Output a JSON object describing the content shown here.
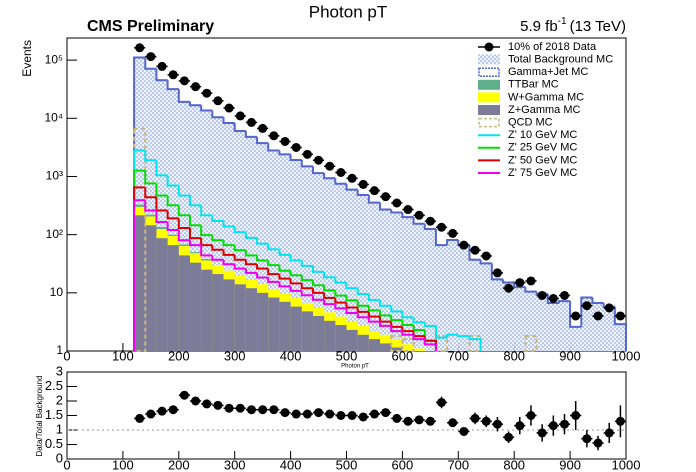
{
  "chart_data": [
    {
      "type": "histogram",
      "title": "Photon pT",
      "experiment": "CMS Preliminary",
      "lumi": "5.9 fb",
      "lumi_exp": "-1",
      "lumi_energy": "(13 TeV)",
      "x_label": "Photon pT",
      "y_label": "Events",
      "log_y": true,
      "legend_position": "top-right",
      "xlim": [
        0,
        1000
      ],
      "xticks": [
        0,
        100,
        200,
        300,
        400,
        500,
        600,
        700,
        800,
        900,
        1000
      ],
      "ylim": [
        1,
        240000
      ],
      "yticks": [
        1,
        10,
        {
          "value": 100,
          "label": "10²"
        },
        {
          "value": 1000,
          "label": "10³"
        },
        {
          "value": 10000,
          "label": "10⁴"
        },
        {
          "value": 100000,
          "label": "10⁵"
        }
      ],
      "bins": [
        120,
        140,
        160,
        180,
        200,
        220,
        240,
        260,
        280,
        300,
        320,
        340,
        360,
        380,
        400,
        420,
        440,
        460,
        480,
        500,
        520,
        540,
        560,
        580,
        600,
        620,
        640,
        660,
        680,
        700,
        720,
        740,
        760,
        780,
        800,
        820,
        840,
        860,
        880,
        900,
        920,
        940,
        960,
        980,
        1000
      ],
      "series": [
        {
          "name": "10% of 2018 Data",
          "color": "#000000",
          "style": "points",
          "values": [
            163000,
            115000,
            78000,
            56000,
            44000,
            35000,
            27000,
            20000,
            15000,
            11000,
            8500,
            6700,
            5000,
            4000,
            3150,
            2400,
            1900,
            1500,
            1170,
            930,
            730,
            570,
            450,
            350,
            270,
            215,
            170,
            134,
            105,
            66,
            54,
            43,
            22,
            12,
            15,
            16,
            9,
            8,
            9,
            4,
            6,
            4,
            5.5,
            4
          ]
        },
        {
          "name": "Total Background MC",
          "color": "#8fa8dc",
          "style": "hatch",
          "values": [
            116000,
            74000,
            47000,
            33000,
            20000,
            17500,
            14200,
            10800,
            8600,
            6300,
            5000,
            3900,
            2900,
            2500,
            2000,
            1550,
            1190,
            970,
            780,
            620,
            500,
            370,
            280,
            250,
            210,
            160,
            130,
            69,
            84,
            69,
            39,
            33,
            18,
            16,
            13,
            11,
            10,
            7,
            7.5,
            2.7,
            8.6,
            7,
            6,
            3
          ]
        },
        {
          "name": "Gamma+Jet MC",
          "color": "#5566cc",
          "style": "line",
          "values": [
            111000,
            71000,
            45000,
            31700,
            19200,
            16800,
            13600,
            10400,
            8300,
            6050,
            4800,
            3750,
            2800,
            2400,
            1920,
            1490,
            1140,
            930,
            750,
            595,
            480,
            355,
            270,
            240,
            200,
            154,
            125,
            66,
            81,
            66,
            37,
            32,
            17,
            15,
            12.5,
            10.5,
            9.6,
            6.7,
            7.2,
            2.6,
            8.3,
            6.7,
            5.8,
            2.9
          ]
        },
        {
          "name": "TTBar MC",
          "color": "#5fae8c",
          "style": "fill",
          "values": [
            330,
            220,
            135,
            100,
            68,
            50,
            38,
            null,
            null,
            null,
            null,
            null,
            null,
            null,
            null,
            null,
            null,
            null,
            null,
            null,
            null,
            null,
            null,
            null,
            null,
            null,
            null,
            null,
            null,
            null,
            null,
            null,
            null,
            null,
            null,
            null,
            null,
            null,
            null,
            null,
            null,
            null,
            null,
            null
          ]
        },
        {
          "name": "W+Gamma MC",
          "color": "#ffff00",
          "style": "fill",
          "values": [
            300,
            205,
            125,
            95,
            64,
            48,
            36,
            30,
            24,
            20,
            17,
            14,
            11.6,
            9.8,
            8.1,
            6.7,
            5.6,
            4.6,
            3.9,
            3.2,
            2.7,
            2.2,
            1.9,
            1.6,
            1.3,
            1.1,
            null,
            null,
            null,
            null,
            null,
            null,
            null,
            null,
            null,
            null,
            null,
            null,
            null,
            null,
            null,
            null,
            null,
            null
          ]
        },
        {
          "name": "Z+Gamma MC",
          "color": "#7c7c99",
          "style": "fill",
          "values": [
            215,
            145,
            87,
            66,
            44,
            33,
            25,
            21,
            17,
            14,
            12,
            10,
            8.3,
            7,
            5.8,
            4.8,
            4,
            3.3,
            2.8,
            2.3,
            1.9,
            1.6,
            1.35,
            1.15,
            null,
            null,
            null,
            null,
            null,
            null,
            null,
            null,
            null,
            null,
            null,
            null,
            null,
            null,
            null,
            null,
            null,
            null,
            null,
            null
          ]
        },
        {
          "name": "QCD MC",
          "color": "#c8b680",
          "style": "dashed",
          "values": [
            6600,
            null,
            null,
            null,
            null,
            null,
            null,
            null,
            null,
            null,
            null,
            null,
            null,
            null,
            null,
            null,
            null,
            null,
            null,
            null,
            null,
            null,
            null,
            1.8,
            1.6,
            null,
            null,
            1.8,
            null,
            null,
            1.8,
            null,
            null,
            null,
            null,
            1.8,
            null,
            null,
            null,
            null,
            null,
            null,
            null,
            null
          ]
        },
        {
          "name": "Z' 10 GeV MC",
          "color": "#00e5ee",
          "style": "line",
          "values": [
            2800,
            1900,
            1050,
            700,
            470,
            320,
            215,
            172,
            138,
            110,
            88,
            70,
            56,
            45,
            36,
            29,
            23,
            18.5,
            15,
            12,
            9.5,
            7.5,
            6,
            4.8,
            3.8,
            3.1,
            2.7,
            1.7,
            1.9,
            1.8,
            1.6,
            null,
            null,
            null,
            null,
            null,
            null,
            null,
            null,
            null,
            null,
            null,
            null,
            null
          ]
        },
        {
          "name": "Z' 25 GeV MC",
          "color": "#00dd00",
          "style": "line",
          "values": [
            1260,
            760,
            470,
            320,
            215,
            145,
            98,
            80,
            66,
            54,
            44,
            36,
            30,
            24,
            20,
            16.5,
            13.5,
            11,
            9,
            7.4,
            6,
            5,
            4.1,
            3.4,
            2.8,
            2.3,
            1.5,
            null,
            null,
            null,
            null,
            null,
            null,
            null,
            null,
            null,
            null,
            null,
            null,
            null,
            null,
            null,
            null,
            null
          ]
        },
        {
          "name": "Z' 50 GeV MC",
          "color": "#dd0000",
          "style": "line",
          "values": [
            650,
            440,
            260,
            190,
            130,
            87,
            66,
            55,
            45,
            37,
            31,
            26,
            21,
            17.5,
            14.5,
            12,
            10,
            8.2,
            6.8,
            5.6,
            4.7,
            3.9,
            3.2,
            2.6,
            2.2,
            1.8,
            1.5,
            null,
            null,
            null,
            null,
            null,
            null,
            null,
            null,
            null,
            null,
            null,
            null,
            null,
            null,
            null,
            null,
            null
          ]
        },
        {
          "name": "Z' 75 GeV MC",
          "color": "#ee00ee",
          "style": "line",
          "values": [
            390,
            260,
            165,
            120,
            80,
            66,
            44,
            37,
            31,
            26,
            22,
            18.3,
            15.4,
            12.9,
            10.8,
            9.1,
            7.6,
            6.4,
            5.4,
            4.5,
            3.8,
            3.2,
            2.7,
            2.2,
            1.9,
            1.6,
            1.3,
            null,
            null,
            null,
            null,
            null,
            null,
            null,
            null,
            null,
            null,
            null,
            null,
            null,
            null,
            null,
            null,
            null
          ]
        }
      ]
    },
    {
      "type": "ratio",
      "y_label": "Data/Total Background",
      "xlim": [
        0,
        1000
      ],
      "xticks": [
        0,
        100,
        200,
        300,
        400,
        500,
        600,
        700,
        800,
        900,
        1000
      ],
      "ylim": [
        0,
        3
      ],
      "yticks": [
        0,
        0.5,
        1,
        1.5,
        2,
        2.5,
        3
      ],
      "ref_line": 1,
      "color": "#000000",
      "values": [
        1.4,
        1.55,
        1.65,
        1.7,
        2.2,
        2.0,
        1.9,
        1.85,
        1.75,
        1.75,
        1.7,
        1.7,
        1.7,
        1.6,
        1.55,
        1.55,
        1.6,
        1.55,
        1.5,
        1.5,
        1.45,
        1.55,
        1.6,
        1.4,
        1.3,
        1.35,
        1.3,
        1.95,
        1.25,
        0.95,
        1.4,
        1.3,
        1.2,
        0.75,
        1.15,
        1.5,
        0.9,
        1.15,
        1.2,
        1.5,
        0.7,
        0.55,
        0.9,
        1.3
      ],
      "errors": [
        0.05,
        0.05,
        0.05,
        0.05,
        0.05,
        0.05,
        0.05,
        0.05,
        0.05,
        0.05,
        0.05,
        0.05,
        0.05,
        0.05,
        0.05,
        0.05,
        0.05,
        0.05,
        0.05,
        0.05,
        0.08,
        0.08,
        0.1,
        0.1,
        0.1,
        0.12,
        0.12,
        0.2,
        0.15,
        0.15,
        0.2,
        0.2,
        0.25,
        0.2,
        0.3,
        0.35,
        0.3,
        0.35,
        0.35,
        0.5,
        0.3,
        0.25,
        0.35,
        0.55
      ]
    }
  ]
}
